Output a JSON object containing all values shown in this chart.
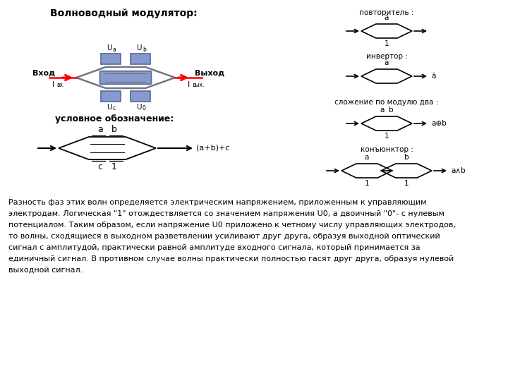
{
  "bg_color": "#ffffff",
  "title_main": "Волноводный модулятор:",
  "title_symbol": "условное обозначение:",
  "title_repeater": "повторитель :",
  "title_inverter": "инвертор :",
  "title_xor": "сложение по модулю два :",
  "title_and": "конъюнктор :",
  "label_vhod": "Вход",
  "label_vyhod": "Выход",
  "blue_fill": "#8899cc",
  "blue_edge": "#5566aa",
  "body_lines": [
    "Разность фаз этих волн определяется электрическим напряжением, приложенным к управляющим",
    "электродам. Логическая \"1\" отождествляется со значением напряжения U0, а двоичный \"0\"- с нулевым",
    "потенциалом. Таким образом, если напряжение U0 приложено к четному числу управляющих электродов,",
    "то волны, сходящиеся в выходном разветвлении усиливают друг друга, образуя выходной оптический",
    "сигнал с амплитудой, практически равной амплитуде входного сигнала, который принимается за",
    "единичный сигнал. В противном случае волны практически полностью гасят друг друга, образуя нулевой",
    "выходной сигнал."
  ]
}
